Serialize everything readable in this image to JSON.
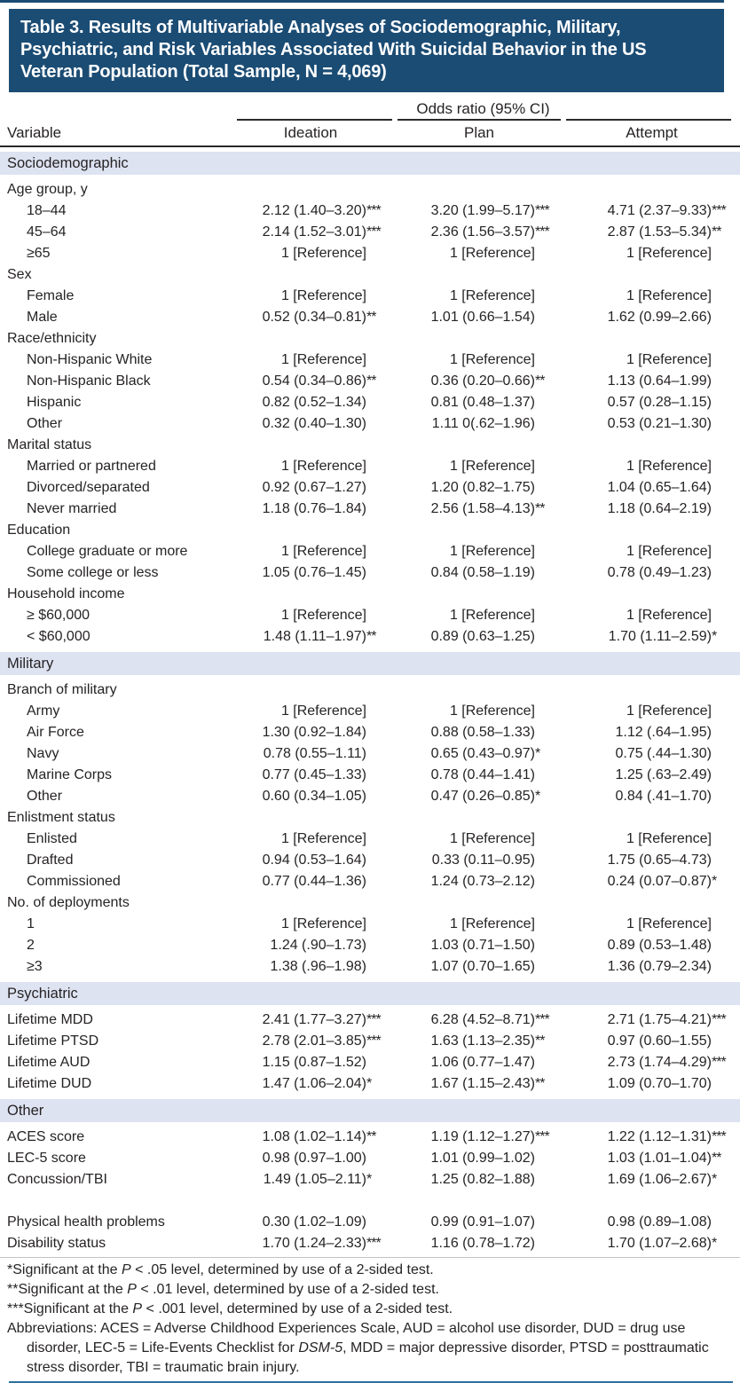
{
  "colors": {
    "title_bg": "#1b4c74",
    "band_bg": "#dee3f2",
    "rule_dark": "#2a2a2a",
    "rule_blue": "#2e709f",
    "text": "#262324"
  },
  "title": {
    "lines": [
      "Table 3. Results of Multivariable Analyses of Sociodemographic, Military,",
      "Psychiatric, and Risk Variables Associated With Suicidal Behavior in the US",
      "Veteran Population (Total Sample, N = 4,069)"
    ]
  },
  "header": {
    "odds_ratio_span": "Odds ratio (95% CI)",
    "variable": "Variable",
    "cols": [
      "Ideation",
      "Plan",
      "Attempt"
    ]
  },
  "table": {
    "col_keys": [
      "ideation",
      "plan",
      "attempt"
    ],
    "reference_value": "1 [Reference]",
    "sections": [
      {
        "band": "Sociodemographic",
        "rows": [
          {
            "group": "Age group, y"
          },
          {
            "label": "18–44",
            "indent": 1,
            "cells": [
              [
                "2.12 (1.40–3.20)",
                "***"
              ],
              [
                "3.20 (1.99–5.17)",
                "***"
              ],
              [
                "4.71 (2.37–9.33)",
                "***"
              ]
            ]
          },
          {
            "label": "45–64",
            "indent": 1,
            "cells": [
              [
                "2.14 (1.52–3.01)",
                "***"
              ],
              [
                "2.36 (1.56–3.57)",
                "***"
              ],
              [
                "2.87 (1.53–5.34)",
                "**"
              ]
            ]
          },
          {
            "label": "≥65",
            "indent": 1,
            "cells": [
              [
                "1 [Reference]",
                ""
              ],
              [
                "1 [Reference]",
                ""
              ],
              [
                "1 [Reference]",
                ""
              ]
            ]
          },
          {
            "group": "Sex"
          },
          {
            "label": "Female",
            "indent": 1,
            "cells": [
              [
                "1 [Reference]",
                ""
              ],
              [
                "1 [Reference]",
                ""
              ],
              [
                "1 [Reference]",
                ""
              ]
            ]
          },
          {
            "label": "Male",
            "indent": 1,
            "cells": [
              [
                "0.52 (0.34–0.81)",
                "**"
              ],
              [
                "1.01 (0.66–1.54)",
                ""
              ],
              [
                "1.62 (0.99–2.66)",
                ""
              ]
            ]
          },
          {
            "group": "Race/ethnicity"
          },
          {
            "label": "Non-Hispanic White",
            "indent": 1,
            "cells": [
              [
                "1 [Reference]",
                ""
              ],
              [
                "1 [Reference]",
                ""
              ],
              [
                "1 [Reference]",
                ""
              ]
            ]
          },
          {
            "label": "Non-Hispanic Black",
            "indent": 1,
            "cells": [
              [
                "0.54 (0.34–0.86)",
                "**"
              ],
              [
                "0.36 (0.20–0.66)",
                "**"
              ],
              [
                "1.13 (0.64–1.99)",
                ""
              ]
            ]
          },
          {
            "label": "Hispanic",
            "indent": 1,
            "cells": [
              [
                "0.82 (0.52–1.34)",
                ""
              ],
              [
                "0.81 (0.48–1.37)",
                ""
              ],
              [
                "0.57 (0.28–1.15)",
                ""
              ]
            ]
          },
          {
            "label": "Other",
            "indent": 1,
            "cells": [
              [
                "0.32 (0.40–1.30)",
                ""
              ],
              [
                "1.11 0(.62–1.96)",
                ""
              ],
              [
                "0.53 (0.21–1.30)",
                ""
              ]
            ]
          },
          {
            "group": "Marital status"
          },
          {
            "label": "Married or partnered",
            "indent": 1,
            "cells": [
              [
                "1 [Reference]",
                ""
              ],
              [
                "1 [Reference]",
                ""
              ],
              [
                "1 [Reference]",
                ""
              ]
            ]
          },
          {
            "label": "Divorced/separated",
            "indent": 1,
            "cells": [
              [
                "0.92 (0.67–1.27)",
                ""
              ],
              [
                "1.20 (0.82–1.75)",
                ""
              ],
              [
                "1.04 (0.65–1.64)",
                ""
              ]
            ]
          },
          {
            "label": "Never married",
            "indent": 1,
            "cells": [
              [
                "1.18 (0.76–1.84)",
                ""
              ],
              [
                "2.56 (1.58–4.13)",
                "**"
              ],
              [
                "1.18 (0.64–2.19)",
                ""
              ]
            ]
          },
          {
            "group": "Education"
          },
          {
            "label": "College graduate or more",
            "indent": 1,
            "cells": [
              [
                "1 [Reference]",
                ""
              ],
              [
                "1 [Reference]",
                ""
              ],
              [
                "1 [Reference]",
                ""
              ]
            ]
          },
          {
            "label": "Some college or less",
            "indent": 1,
            "cells": [
              [
                "1.05 (0.76–1.45)",
                ""
              ],
              [
                "0.84 (0.58–1.19)",
                ""
              ],
              [
                "0.78 (0.49–1.23)",
                ""
              ]
            ]
          },
          {
            "group": "Household income"
          },
          {
            "label": "≥ $60,000",
            "indent": 1,
            "cells": [
              [
                "1 [Reference]",
                ""
              ],
              [
                "1 [Reference]",
                ""
              ],
              [
                "1 [Reference]",
                ""
              ]
            ]
          },
          {
            "label": "< $60,000",
            "indent": 1,
            "cells": [
              [
                "1.48 (1.11–1.97)",
                "**"
              ],
              [
                "0.89 (0.63–1.25)",
                ""
              ],
              [
                "1.70 (1.11–2.59)",
                "*"
              ]
            ]
          }
        ]
      },
      {
        "band": "Military",
        "rows": [
          {
            "group": "Branch of military"
          },
          {
            "label": "Army",
            "indent": 1,
            "cells": [
              [
                "1 [Reference]",
                ""
              ],
              [
                "1 [Reference]",
                ""
              ],
              [
                "1 [Reference]",
                ""
              ]
            ]
          },
          {
            "label": "Air Force",
            "indent": 1,
            "cells": [
              [
                "1.30 (0.92–1.84)",
                ""
              ],
              [
                "0.88 (0.58–1.33)",
                ""
              ],
              [
                "1.12 (.64–1.95)",
                ""
              ]
            ]
          },
          {
            "label": "Navy",
            "indent": 1,
            "cells": [
              [
                "0.78 (0.55–1.11)",
                ""
              ],
              [
                "0.65 (0.43–0.97)",
                "*"
              ],
              [
                "0.75 (.44–1.30)",
                ""
              ]
            ]
          },
          {
            "label": "Marine Corps",
            "indent": 1,
            "cells": [
              [
                "0.77 (0.45–1.33)",
                ""
              ],
              [
                "0.78 (0.44–1.41)",
                ""
              ],
              [
                "1.25 (.63–2.49)",
                ""
              ]
            ]
          },
          {
            "label": "Other",
            "indent": 1,
            "cells": [
              [
                "0.60 (0.34–1.05)",
                ""
              ],
              [
                "0.47 (0.26–0.85)",
                "*"
              ],
              [
                "0.84 (.41–1.70)",
                ""
              ]
            ]
          },
          {
            "group": "Enlistment status"
          },
          {
            "label": "Enlisted",
            "indent": 1,
            "cells": [
              [
                "1 [Reference]",
                ""
              ],
              [
                "1 [Reference]",
                ""
              ],
              [
                "1 [Reference]",
                ""
              ]
            ]
          },
          {
            "label": "Drafted",
            "indent": 1,
            "cells": [
              [
                "0.94 (0.53–1.64)",
                ""
              ],
              [
                "0.33 (0.11–0.95)",
                ""
              ],
              [
                "1.75 (0.65–4.73)",
                ""
              ]
            ]
          },
          {
            "label": "Commissioned",
            "indent": 1,
            "cells": [
              [
                "0.77 (0.44–1.36)",
                ""
              ],
              [
                "1.24 (0.73–2.12)",
                ""
              ],
              [
                "0.24 (0.07–0.87)",
                "*"
              ]
            ]
          },
          {
            "group": "No. of deployments"
          },
          {
            "label": "1",
            "indent": 1,
            "cells": [
              [
                "1 [Reference]",
                ""
              ],
              [
                "1 [Reference]",
                ""
              ],
              [
                "1 [Reference]",
                ""
              ]
            ]
          },
          {
            "label": "2",
            "indent": 1,
            "cells": [
              [
                "1.24 (.90–1.73)",
                ""
              ],
              [
                "1.03 (0.71–1.50)",
                ""
              ],
              [
                "0.89 (0.53–1.48)",
                ""
              ]
            ]
          },
          {
            "label": "≥3",
            "indent": 1,
            "cells": [
              [
                "1.38 (.96–1.98)",
                ""
              ],
              [
                "1.07 (0.70–1.65)",
                ""
              ],
              [
                "1.36 (0.79–2.34)",
                ""
              ]
            ]
          }
        ]
      },
      {
        "band": "Psychiatric",
        "rows": [
          {
            "label": "Lifetime MDD",
            "indent": 0,
            "cells": [
              [
                "2.41 (1.77–3.27)",
                "***"
              ],
              [
                "6.28 (4.52–8.71)",
                "***"
              ],
              [
                "2.71 (1.75–4.21)",
                "***"
              ]
            ]
          },
          {
            "label": "Lifetime PTSD",
            "indent": 0,
            "cells": [
              [
                "2.78 (2.01–3.85)",
                "***"
              ],
              [
                "1.63 (1.13–2.35)",
                "**"
              ],
              [
                "0.97 (0.60–1.55)",
                ""
              ]
            ]
          },
          {
            "label": "Lifetime AUD",
            "indent": 0,
            "cells": [
              [
                "1.15 (0.87–1.52)",
                ""
              ],
              [
                "1.06 (0.77–1.47)",
                ""
              ],
              [
                "2.73 (1.74–4.29)",
                "***"
              ]
            ]
          },
          {
            "label": "Lifetime DUD",
            "indent": 0,
            "cells": [
              [
                "1.47 (1.06–2.04)",
                "*"
              ],
              [
                "1.67 (1.15–2.43)",
                "**"
              ],
              [
                "1.09 (0.70–1.70)",
                ""
              ]
            ]
          }
        ]
      },
      {
        "band": "Other",
        "rows": [
          {
            "label": "ACES score",
            "indent": 0,
            "cells": [
              [
                "1.08 (1.02–1.14)",
                "**"
              ],
              [
                "1.19 (1.12–1.27)",
                "***"
              ],
              [
                "1.22 (1.12–1.31)",
                "***"
              ]
            ]
          },
          {
            "label": "LEC-5 score",
            "indent": 0,
            "cells": [
              [
                "0.98 (0.97–1.00)",
                ""
              ],
              [
                "1.01 (0.99–1.02)",
                ""
              ],
              [
                "1.03 (1.01–1.04)",
                "**"
              ]
            ]
          },
          {
            "label": "Concussion/TBI",
            "indent": 0,
            "cells": [
              [
                "1.49 (1.05–2.11)",
                "*"
              ],
              [
                "1.25 (0.82–1.88)",
                ""
              ],
              [
                "1.69 (1.06–2.67)",
                "*"
              ]
            ]
          },
          {
            "blank": true
          },
          {
            "label": "Physical health problems",
            "indent": 0,
            "cells": [
              [
                "0.30 (1.02–1.09)",
                ""
              ],
              [
                "0.99 (0.91–1.07)",
                ""
              ],
              [
                "0.98 (0.89–1.08)",
                ""
              ]
            ]
          },
          {
            "label": "Disability status",
            "indent": 0,
            "cells": [
              [
                "1.70 (1.24–2.33)",
                "***"
              ],
              [
                "1.16 (0.78–1.72)",
                ""
              ],
              [
                "1.70 (1.07–2.68)",
                "*"
              ]
            ]
          }
        ]
      }
    ]
  },
  "footnotes": [
    {
      "hang": false,
      "segments": [
        {
          "t": "*Significant at the "
        },
        {
          "t": "P",
          "i": true
        },
        {
          "t": " < .05 level, determined by use of a 2-sided test."
        }
      ]
    },
    {
      "hang": false,
      "segments": [
        {
          "t": "**Significant at the "
        },
        {
          "t": "P",
          "i": true
        },
        {
          "t": " < .01 level, determined by use of a 2-sided test."
        }
      ]
    },
    {
      "hang": false,
      "segments": [
        {
          "t": "***Significant at the "
        },
        {
          "t": "P",
          "i": true
        },
        {
          "t": " < .001 level, determined by use of a 2-sided test."
        }
      ]
    },
    {
      "hang": true,
      "segments": [
        {
          "t": "Abbreviations: ACES = Adverse Childhood Experiences Scale, AUD = alcohol use disorder, DUD = drug use disorder, LEC-5 = Life-Events Checklist for "
        },
        {
          "t": "DSM-5",
          "i": true
        },
        {
          "t": ", MDD = major depressive disorder, PTSD = posttraumatic stress disorder, TBI = traumatic brain injury."
        }
      ]
    }
  ]
}
